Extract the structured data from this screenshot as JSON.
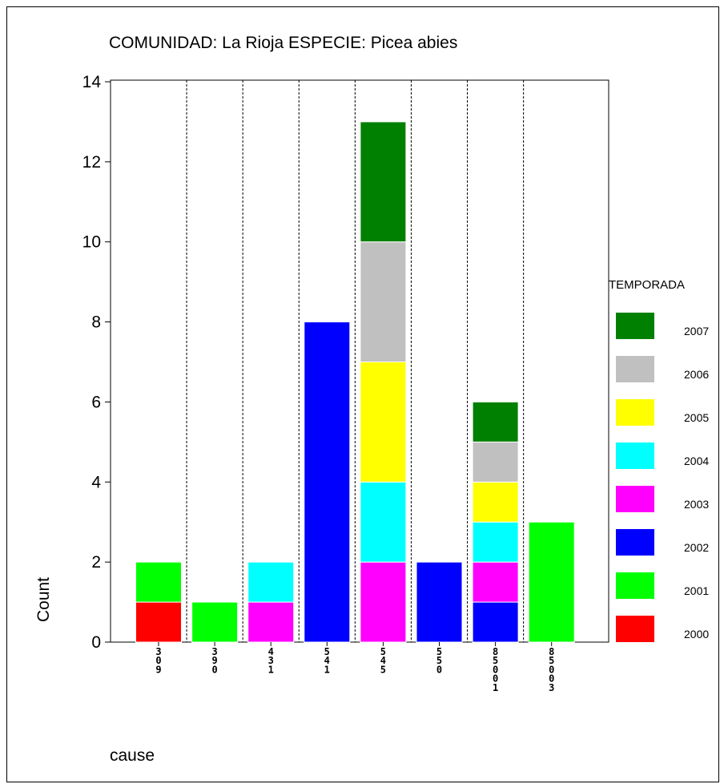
{
  "chart_data": {
    "type": "bar",
    "stacked": true,
    "title": "COMUNIDAD: La Rioja  ESPECIE: Picea abies",
    "xlabel": "cause",
    "ylabel": "Count",
    "ylim": [
      0,
      14
    ],
    "yticks": [
      "0",
      "2",
      "4",
      "6",
      "8",
      "10",
      "12",
      "14"
    ],
    "categories": [
      "309",
      "390",
      "431",
      "541",
      "545",
      "550",
      "85001",
      "85003"
    ],
    "legend": {
      "title": "TEMPORADA",
      "placement": "right"
    },
    "grid": "dashed vertical separators between categories",
    "series": [
      {
        "name": "2000",
        "color": "#ff0000",
        "values": [
          1,
          0,
          0,
          0,
          0,
          0,
          0,
          0
        ]
      },
      {
        "name": "2001",
        "color": "#00ff00",
        "values": [
          1,
          1,
          0,
          0,
          0,
          0,
          0,
          3
        ]
      },
      {
        "name": "2002",
        "color": "#0000ff",
        "values": [
          0,
          0,
          0,
          8,
          0,
          2,
          1,
          0
        ]
      },
      {
        "name": "2003",
        "color": "#ff00ff",
        "values": [
          0,
          0,
          1,
          0,
          2,
          0,
          1,
          0
        ]
      },
      {
        "name": "2004",
        "color": "#00ffff",
        "values": [
          0,
          0,
          1,
          0,
          2,
          0,
          1,
          0
        ]
      },
      {
        "name": "2005",
        "color": "#ffff00",
        "values": [
          0,
          0,
          0,
          0,
          3,
          0,
          1,
          0
        ]
      },
      {
        "name": "2006",
        "color": "#c0c0c0",
        "values": [
          0,
          0,
          0,
          0,
          3,
          0,
          1,
          0
        ]
      },
      {
        "name": "2007",
        "color": "#008000",
        "values": [
          0,
          0,
          0,
          0,
          3,
          0,
          1,
          0
        ]
      }
    ]
  }
}
